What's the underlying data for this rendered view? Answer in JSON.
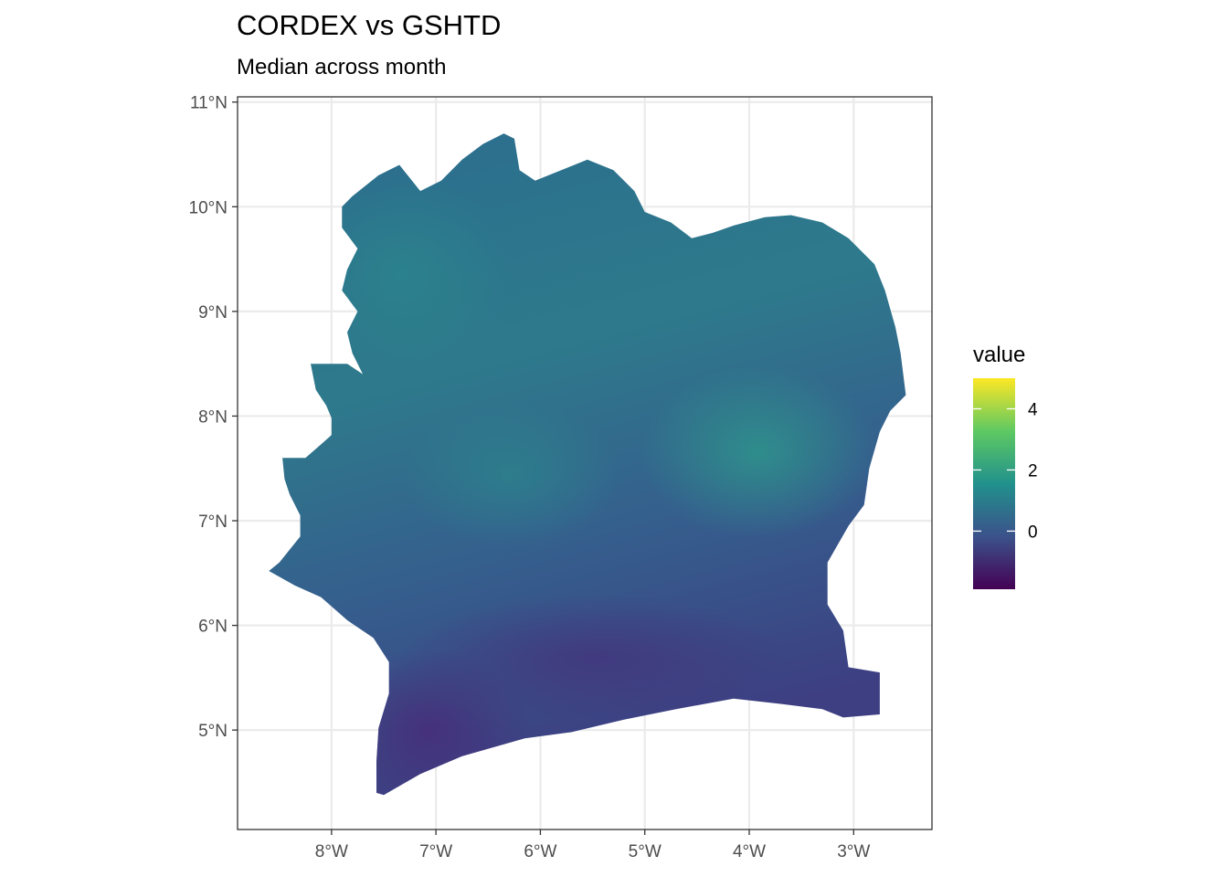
{
  "title": "CORDEX vs GSHTD",
  "subtitle": "Median across month",
  "chart_data": {
    "type": "heatmap",
    "x_ticks": [
      {
        "value": -8,
        "label": "8°W"
      },
      {
        "value": -7,
        "label": "7°W"
      },
      {
        "value": -6,
        "label": "6°W"
      },
      {
        "value": -5,
        "label": "5°W"
      },
      {
        "value": -4,
        "label": "4°W"
      },
      {
        "value": -3,
        "label": "3°W"
      }
    ],
    "y_ticks": [
      {
        "value": 5,
        "label": "5°N"
      },
      {
        "value": 6,
        "label": "6°N"
      },
      {
        "value": 7,
        "label": "7°N"
      },
      {
        "value": 8,
        "label": "8°N"
      },
      {
        "value": 9,
        "label": "9°N"
      },
      {
        "value": 10,
        "label": "10°N"
      },
      {
        "value": 11,
        "label": "11°N"
      }
    ],
    "xlim": [
      -8.9,
      -2.25
    ],
    "ylim": [
      4.05,
      11.05
    ],
    "grid": true,
    "legend": {
      "title": "value",
      "position": "right",
      "range": [
        -1.9,
        5
      ],
      "ticks": [
        {
          "value": 0,
          "label": "0"
        },
        {
          "value": 2,
          "label": "2"
        },
        {
          "value": 4,
          "label": "4"
        }
      ],
      "colors": [
        "#440154",
        "#3b528b",
        "#21918c",
        "#5ec962",
        "#fde725"
      ]
    },
    "region_outline_lonlat": [
      [
        -8.6,
        6.52
      ],
      [
        -8.5,
        6.6
      ],
      [
        -8.3,
        6.85
      ],
      [
        -8.3,
        7.05
      ],
      [
        -8.4,
        7.25
      ],
      [
        -8.45,
        7.4
      ],
      [
        -8.47,
        7.6
      ],
      [
        -8.25,
        7.6
      ],
      [
        -8.1,
        7.73
      ],
      [
        -8.0,
        7.82
      ],
      [
        -8.0,
        7.98
      ],
      [
        -8.05,
        8.1
      ],
      [
        -8.15,
        8.25
      ],
      [
        -8.2,
        8.5
      ],
      [
        -7.85,
        8.5
      ],
      [
        -7.7,
        8.4
      ],
      [
        -7.8,
        8.6
      ],
      [
        -7.85,
        8.8
      ],
      [
        -7.75,
        9.0
      ],
      [
        -7.9,
        9.2
      ],
      [
        -7.85,
        9.4
      ],
      [
        -7.75,
        9.6
      ],
      [
        -7.9,
        9.8
      ],
      [
        -7.9,
        10.0
      ],
      [
        -7.8,
        10.1
      ],
      [
        -7.55,
        10.3
      ],
      [
        -7.35,
        10.4
      ],
      [
        -7.15,
        10.15
      ],
      [
        -6.95,
        10.25
      ],
      [
        -6.75,
        10.45
      ],
      [
        -6.55,
        10.6
      ],
      [
        -6.35,
        10.7
      ],
      [
        -6.25,
        10.65
      ],
      [
        -6.2,
        10.35
      ],
      [
        -6.05,
        10.25
      ],
      [
        -5.8,
        10.35
      ],
      [
        -5.55,
        10.45
      ],
      [
        -5.3,
        10.35
      ],
      [
        -5.1,
        10.15
      ],
      [
        -5.0,
        9.95
      ],
      [
        -4.75,
        9.85
      ],
      [
        -4.55,
        9.7
      ],
      [
        -4.35,
        9.75
      ],
      [
        -4.15,
        9.82
      ],
      [
        -3.85,
        9.9
      ],
      [
        -3.6,
        9.92
      ],
      [
        -3.3,
        9.85
      ],
      [
        -3.05,
        9.7
      ],
      [
        -2.8,
        9.45
      ],
      [
        -2.7,
        9.2
      ],
      [
        -2.6,
        8.85
      ],
      [
        -2.55,
        8.6
      ],
      [
        -2.5,
        8.2
      ],
      [
        -2.65,
        8.05
      ],
      [
        -2.75,
        7.85
      ],
      [
        -2.85,
        7.5
      ],
      [
        -2.9,
        7.15
      ],
      [
        -3.05,
        6.95
      ],
      [
        -3.25,
        6.6
      ],
      [
        -3.25,
        6.2
      ],
      [
        -3.1,
        5.95
      ],
      [
        -3.05,
        5.6
      ],
      [
        -2.75,
        5.55
      ],
      [
        -2.75,
        5.15
      ],
      [
        -3.1,
        5.12
      ],
      [
        -3.3,
        5.2
      ],
      [
        -3.7,
        5.25
      ],
      [
        -4.15,
        5.3
      ],
      [
        -4.7,
        5.2
      ],
      [
        -5.2,
        5.1
      ],
      [
        -5.7,
        4.98
      ],
      [
        -6.15,
        4.92
      ],
      [
        -6.75,
        4.75
      ],
      [
        -7.15,
        4.58
      ],
      [
        -7.5,
        4.38
      ],
      [
        -7.57,
        4.4
      ],
      [
        -7.57,
        4.7
      ],
      [
        -7.55,
        5.02
      ],
      [
        -7.45,
        5.35
      ],
      [
        -7.45,
        5.65
      ],
      [
        -7.6,
        5.88
      ],
      [
        -7.85,
        6.05
      ],
      [
        -8.1,
        6.27
      ],
      [
        -8.35,
        6.38
      ],
      [
        -8.6,
        6.52
      ]
    ]
  }
}
